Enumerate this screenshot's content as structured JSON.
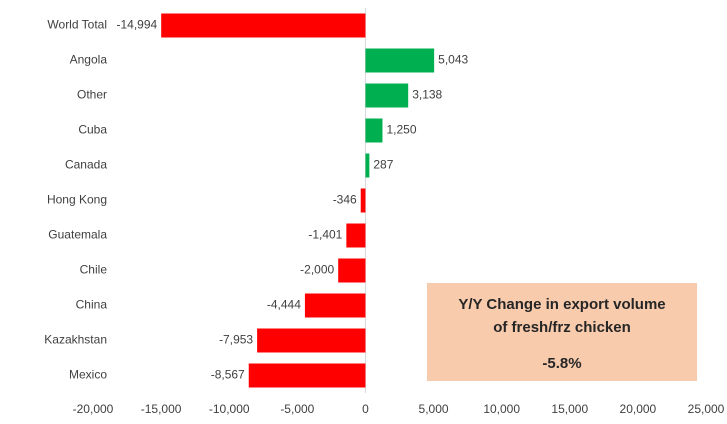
{
  "chart_data": {
    "type": "bar",
    "orientation": "horizontal",
    "categories": [
      "World Total",
      "Angola",
      "Other",
      "Cuba",
      "Canada",
      "Hong Kong",
      "Guatemala",
      "Chile",
      "China",
      "Kazakhstan",
      "Mexico"
    ],
    "values": [
      -14994,
      5043,
      3138,
      1250,
      287,
      -346,
      -1401,
      -2000,
      -4444,
      -7953,
      -8567
    ],
    "value_labels": [
      "-14,994",
      "5,043",
      "3,138",
      "1,250",
      "287",
      "-346",
      "-1,401",
      "-2,000",
      "-4,444",
      "-7,953",
      "-8,567"
    ],
    "colors": {
      "positive": "#00b050",
      "negative": "#ff0000"
    },
    "xlim": [
      -20000,
      25000
    ],
    "xticks": [
      {
        "value": -20000,
        "label": "-20,000"
      },
      {
        "value": -15000,
        "label": "-15,000"
      },
      {
        "value": -10000,
        "label": "-10,000"
      },
      {
        "value": -5000,
        "label": "-5,000"
      },
      0,
      {
        "value": 5000,
        "label": "5,000"
      },
      {
        "value": 10000,
        "label": "10,000"
      },
      {
        "value": 15000,
        "label": "15,000"
      },
      {
        "value": 20000,
        "label": "20,000"
      },
      {
        "value": 25000,
        "label": "25,000"
      }
    ],
    "grid": false,
    "annotation": {
      "lines": [
        "Y/Y Change in export volume",
        "of fresh/frz chicken"
      ],
      "value": "-5.8%"
    }
  }
}
